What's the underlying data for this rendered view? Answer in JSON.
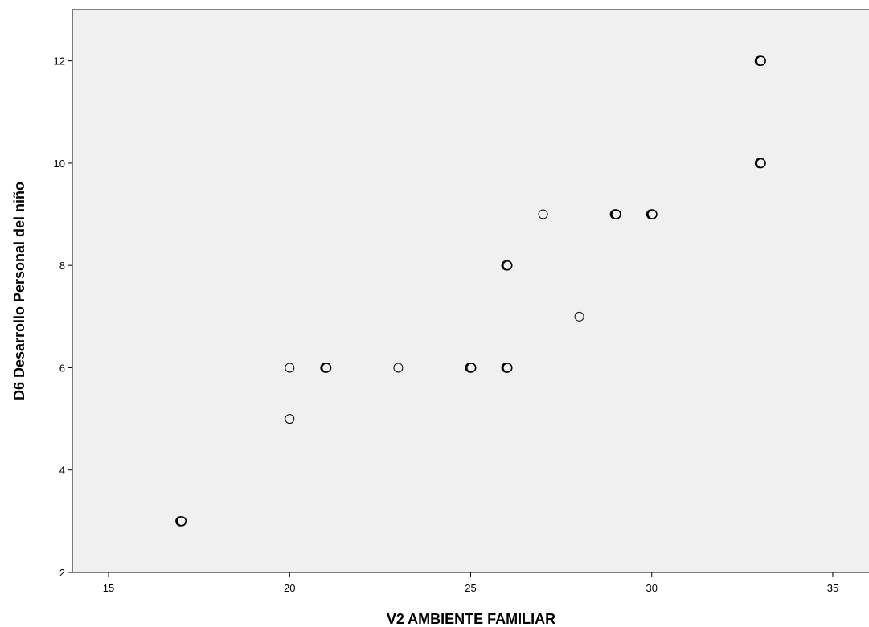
{
  "chart_data": {
    "type": "scatter",
    "title": "",
    "xlabel": "V2 AMBIENTE FAMILIAR",
    "ylabel": "D6 Desarrollo Personal del niño",
    "xlim": [
      14,
      36
    ],
    "ylim": [
      2,
      13
    ],
    "x_ticks": [
      15,
      20,
      25,
      30,
      35
    ],
    "y_ticks": [
      2,
      4,
      6,
      8,
      10,
      12
    ],
    "grid": false,
    "legend": "none",
    "points": [
      {
        "x": 17,
        "y": 3,
        "multiple": true
      },
      {
        "x": 20,
        "y": 6,
        "multiple": false
      },
      {
        "x": 20,
        "y": 5,
        "multiple": false
      },
      {
        "x": 21,
        "y": 6,
        "multiple": true
      },
      {
        "x": 23,
        "y": 6,
        "multiple": false
      },
      {
        "x": 25,
        "y": 6,
        "multiple": true
      },
      {
        "x": 26,
        "y": 8,
        "multiple": true
      },
      {
        "x": 26,
        "y": 6,
        "multiple": true
      },
      {
        "x": 27,
        "y": 9,
        "multiple": false
      },
      {
        "x": 28,
        "y": 7,
        "multiple": false
      },
      {
        "x": 29,
        "y": 9,
        "multiple": true
      },
      {
        "x": 30,
        "y": 9,
        "multiple": true
      },
      {
        "x": 33,
        "y": 12,
        "multiple": true
      },
      {
        "x": 33,
        "y": 10,
        "multiple": true
      }
    ],
    "colors": {
      "plot_background": "#f0f0f0",
      "frame": "#000000",
      "marker_fill": "#f0f0f0",
      "marker_stroke": "#000000"
    }
  }
}
